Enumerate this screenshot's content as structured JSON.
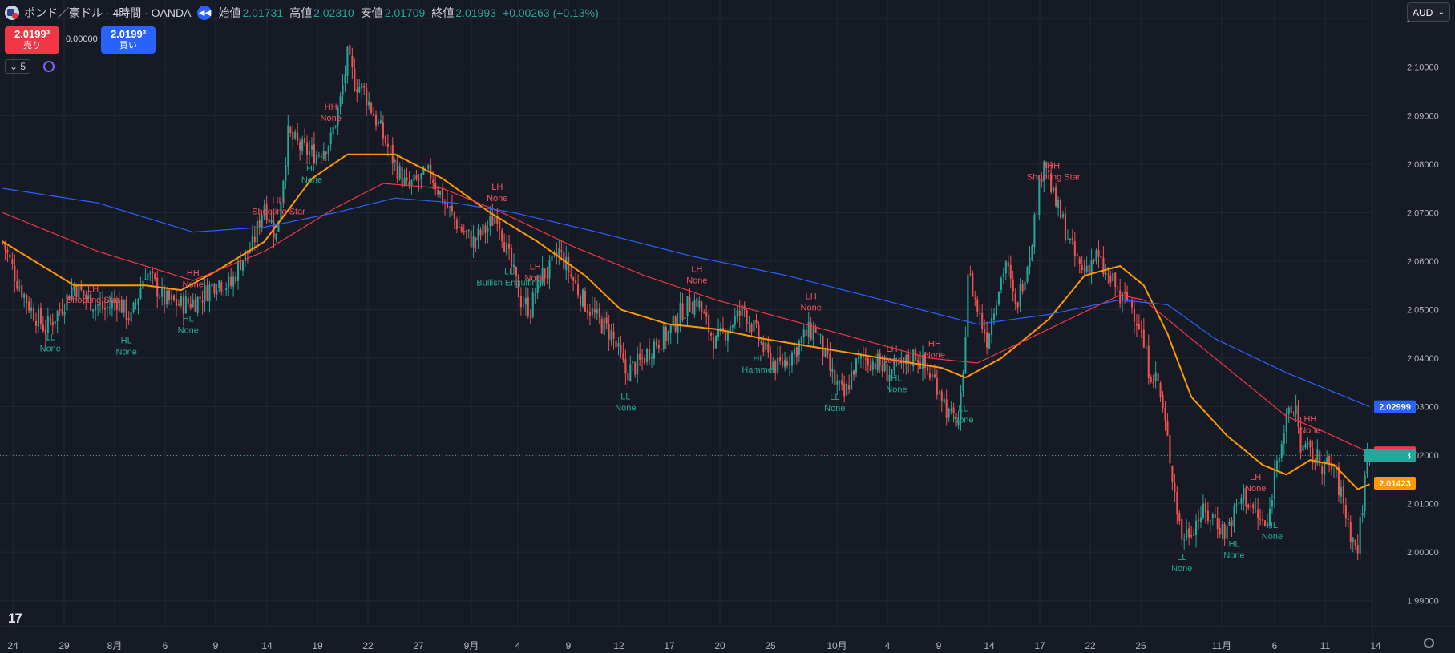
{
  "header": {
    "title": "ポンド／豪ドル · 4時間 · OANDA",
    "open_label": "始値",
    "open": "2.01731",
    "high_label": "高値",
    "high": "2.02310",
    "low_label": "安値",
    "low": "2.01709",
    "close_label": "終値",
    "close": "2.01993",
    "change": "+0.00263 (+0.13%)"
  },
  "trade": {
    "sell_price": "2.0199³",
    "sell_label": "売り",
    "spread": "0.00000",
    "buy_price": "2.0199³",
    "buy_label": "買い"
  },
  "indicator_count": "5",
  "currency": "AUD",
  "colors": {
    "up": "#26a69a",
    "down": "#ef5350",
    "ma_fast": "#ff9800",
    "ma_mid": "#f23645",
    "ma_slow": "#2962ff",
    "grid": "#232632",
    "hh_text": "#f7525f",
    "ll_text": "#22ab94"
  },
  "chart_data": {
    "type": "candlestick",
    "symbol": "GBPAUD",
    "ylim": [
      1.985,
      2.113
    ],
    "y_ticks": [
      "2.11000",
      "2.10000",
      "2.09000",
      "2.08000",
      "2.07000",
      "2.06000",
      "2.05000",
      "2.04000",
      "2.03000",
      "2.02000",
      "2.01000",
      "2.00000",
      "1.99000"
    ],
    "x_ticks": [
      "24",
      "29",
      "8月",
      "6",
      "9",
      "14",
      "19",
      "22",
      "27",
      "9月",
      "4",
      "9",
      "12",
      "17",
      "20",
      "25",
      "10月",
      "4",
      "9",
      "14",
      "17",
      "22",
      "25",
      "11月",
      "6",
      "11",
      "14"
    ],
    "price_anchors": [
      [
        0,
        2.064
      ],
      [
        6,
        2.056
      ],
      [
        12,
        2.05
      ],
      [
        18,
        2.046
      ],
      [
        24,
        2.05
      ],
      [
        30,
        2.055
      ],
      [
        36,
        2.052
      ],
      [
        43,
        2.05
      ],
      [
        48,
        2.052
      ],
      [
        54,
        2.048
      ],
      [
        60,
        2.058
      ],
      [
        68,
        2.052
      ],
      [
        75,
        2.051
      ],
      [
        82,
        2.052
      ],
      [
        90,
        2.056
      ],
      [
        96,
        2.055
      ],
      [
        100,
        2.06
      ],
      [
        105,
        2.063
      ],
      [
        110,
        2.072
      ],
      [
        115,
        2.065
      ],
      [
        120,
        2.086
      ],
      [
        126,
        2.083
      ],
      [
        132,
        2.082
      ],
      [
        138,
        2.085
      ],
      [
        142,
        2.093
      ],
      [
        145,
        2.102
      ],
      [
        148,
        2.097
      ],
      [
        152,
        2.095
      ],
      [
        158,
        2.088
      ],
      [
        165,
        2.08
      ],
      [
        170,
        2.075
      ],
      [
        176,
        2.077
      ],
      [
        180,
        2.078
      ],
      [
        186,
        2.072
      ],
      [
        192,
        2.067
      ],
      [
        198,
        2.064
      ],
      [
        204,
        2.067
      ],
      [
        208,
        2.07
      ],
      [
        212,
        2.062
      ],
      [
        218,
        2.052
      ],
      [
        222,
        2.05
      ],
      [
        226,
        2.057
      ],
      [
        230,
        2.058
      ],
      [
        234,
        2.062
      ],
      [
        238,
        2.058
      ],
      [
        244,
        2.052
      ],
      [
        250,
        2.048
      ],
      [
        256,
        2.045
      ],
      [
        262,
        2.037
      ],
      [
        268,
        2.039
      ],
      [
        274,
        2.043
      ],
      [
        280,
        2.045
      ],
      [
        286,
        2.05
      ],
      [
        292,
        2.052
      ],
      [
        296,
        2.047
      ],
      [
        300,
        2.043
      ],
      [
        306,
        2.047
      ],
      [
        312,
        2.05
      ],
      [
        318,
        2.044
      ],
      [
        322,
        2.04
      ],
      [
        326,
        2.038
      ],
      [
        332,
        2.041
      ],
      [
        338,
        2.045
      ],
      [
        342,
        2.046
      ],
      [
        346,
        2.04
      ],
      [
        350,
        2.035
      ],
      [
        354,
        2.032
      ],
      [
        358,
        2.038
      ],
      [
        362,
        2.04
      ],
      [
        368,
        2.039
      ],
      [
        372,
        2.037
      ],
      [
        378,
        2.038
      ],
      [
        384,
        2.041
      ],
      [
        388,
        2.038
      ],
      [
        394,
        2.034
      ],
      [
        398,
        2.028
      ],
      [
        402,
        2.027
      ],
      [
        404,
        2.035
      ],
      [
        406,
        2.058
      ],
      [
        410,
        2.05
      ],
      [
        414,
        2.044
      ],
      [
        418,
        2.053
      ],
      [
        422,
        2.06
      ],
      [
        426,
        2.05
      ],
      [
        432,
        2.062
      ],
      [
        436,
        2.075
      ],
      [
        438,
        2.082
      ],
      [
        442,
        2.073
      ],
      [
        446,
        2.068
      ],
      [
        450,
        2.062
      ],
      [
        454,
        2.058
      ],
      [
        460,
        2.061
      ],
      [
        464,
        2.057
      ],
      [
        468,
        2.055
      ],
      [
        470,
        2.052
      ],
      [
        474,
        2.052
      ],
      [
        478,
        2.047
      ],
      [
        482,
        2.038
      ],
      [
        486,
        2.035
      ],
      [
        490,
        2.023
      ],
      [
        494,
        2.009
      ],
      [
        496,
        2.003
      ],
      [
        500,
        2.005
      ],
      [
        504,
        2.008
      ],
      [
        510,
        2.007
      ],
      [
        514,
        2.004
      ],
      [
        518,
        2.008
      ],
      [
        522,
        2.012
      ],
      [
        528,
        2.007
      ],
      [
        532,
        2.005
      ],
      [
        536,
        2.02
      ],
      [
        540,
        2.027
      ],
      [
        544,
        2.03
      ],
      [
        546,
        2.022
      ],
      [
        550,
        2.02
      ],
      [
        556,
        2.018
      ],
      [
        560,
        2.017
      ],
      [
        564,
        2.01
      ],
      [
        568,
        2.002
      ],
      [
        570,
        2.001
      ],
      [
        572,
        2.01
      ],
      [
        574,
        2.02
      ],
      [
        575,
        2.0199
      ]
    ],
    "series": [
      {
        "name": "",
        "color": "#ff9800",
        "last": "2.01423",
        "anchors": [
          [
            0,
            2.064
          ],
          [
            30,
            2.055
          ],
          [
            60,
            2.055
          ],
          [
            75,
            2.054
          ],
          [
            90,
            2.058
          ],
          [
            110,
            2.064
          ],
          [
            130,
            2.077
          ],
          [
            145,
            2.082
          ],
          [
            165,
            2.082
          ],
          [
            185,
            2.077
          ],
          [
            205,
            2.07
          ],
          [
            225,
            2.064
          ],
          [
            245,
            2.057
          ],
          [
            260,
            2.05
          ],
          [
            280,
            2.047
          ],
          [
            300,
            2.046
          ],
          [
            320,
            2.044
          ],
          [
            345,
            2.042
          ],
          [
            370,
            2.04
          ],
          [
            395,
            2.038
          ],
          [
            405,
            2.036
          ],
          [
            420,
            2.04
          ],
          [
            440,
            2.048
          ],
          [
            455,
            2.057
          ],
          [
            470,
            2.059
          ],
          [
            480,
            2.055
          ],
          [
            490,
            2.045
          ],
          [
            500,
            2.032
          ],
          [
            515,
            2.024
          ],
          [
            530,
            2.018
          ],
          [
            540,
            2.016
          ],
          [
            550,
            2.019
          ],
          [
            560,
            2.018
          ],
          [
            570,
            2.013
          ],
          [
            575,
            2.014
          ]
        ]
      },
      {
        "name": "",
        "color": "#f23645",
        "last": "2.02048",
        "anchors": [
          [
            0,
            2.07
          ],
          [
            40,
            2.062
          ],
          [
            80,
            2.056
          ],
          [
            110,
            2.062
          ],
          [
            140,
            2.071
          ],
          [
            160,
            2.076
          ],
          [
            185,
            2.075
          ],
          [
            210,
            2.07
          ],
          [
            240,
            2.063
          ],
          [
            270,
            2.057
          ],
          [
            300,
            2.052
          ],
          [
            330,
            2.048
          ],
          [
            360,
            2.044
          ],
          [
            390,
            2.04
          ],
          [
            410,
            2.039
          ],
          [
            440,
            2.046
          ],
          [
            470,
            2.053
          ],
          [
            480,
            2.052
          ],
          [
            500,
            2.044
          ],
          [
            520,
            2.036
          ],
          [
            540,
            2.028
          ],
          [
            555,
            2.025
          ],
          [
            575,
            2.0205
          ]
        ]
      },
      {
        "name": "",
        "color": "#2962ff",
        "last": "2.02999",
        "anchors": [
          [
            0,
            2.075
          ],
          [
            40,
            2.072
          ],
          [
            80,
            2.066
          ],
          [
            110,
            2.067
          ],
          [
            140,
            2.07
          ],
          [
            165,
            2.073
          ],
          [
            190,
            2.072
          ],
          [
            215,
            2.07
          ],
          [
            250,
            2.066
          ],
          [
            290,
            2.061
          ],
          [
            330,
            2.057
          ],
          [
            370,
            2.052
          ],
          [
            410,
            2.047
          ],
          [
            440,
            2.049
          ],
          [
            470,
            2.052
          ],
          [
            490,
            2.051
          ],
          [
            510,
            2.044
          ],
          [
            540,
            2.037
          ],
          [
            560,
            2.033
          ],
          [
            575,
            2.03
          ]
        ]
      }
    ],
    "labels": [
      {
        "i": 138,
        "kind": "hi",
        "l1": "HH",
        "l2": "None"
      },
      {
        "i": 116,
        "kind": "hi",
        "l1": "HH",
        "l2": "Shooting Star"
      },
      {
        "i": 38,
        "kind": "hi",
        "l1": "LH",
        "l2": "Shooting Star"
      },
      {
        "i": 80,
        "kind": "hi",
        "l1": "HH",
        "l2": "None"
      },
      {
        "i": 208,
        "kind": "hi",
        "l1": "LH",
        "l2": "None"
      },
      {
        "i": 224,
        "kind": "hi",
        "l1": "LH",
        "l2": "None"
      },
      {
        "i": 292,
        "kind": "hi",
        "l1": "LH",
        "l2": "None"
      },
      {
        "i": 340,
        "kind": "hi",
        "l1": "LH",
        "l2": "None"
      },
      {
        "i": 374,
        "kind": "hi",
        "l1": "LH",
        "l2": "None"
      },
      {
        "i": 392,
        "kind": "hi",
        "l1": "HH",
        "l2": "None"
      },
      {
        "i": 442,
        "kind": "hi",
        "l1": "HH",
        "l2": "Shooting Star"
      },
      {
        "i": 527,
        "kind": "hi",
        "l1": "LH",
        "l2": "None"
      },
      {
        "i": 550,
        "kind": "hi",
        "l1": "HH",
        "l2": "None"
      },
      {
        "i": 20,
        "kind": "lo",
        "l1": "LL",
        "l2": "None"
      },
      {
        "i": 52,
        "kind": "lo",
        "l1": "HL",
        "l2": "None"
      },
      {
        "i": 78,
        "kind": "lo",
        "l1": "HL",
        "l2": "None"
      },
      {
        "i": 130,
        "kind": "lo",
        "l1": "HL",
        "l2": "None"
      },
      {
        "i": 213,
        "kind": "lo",
        "l1": "LL",
        "l2": "Bullish Engulfing"
      },
      {
        "i": 262,
        "kind": "lo",
        "l1": "LL",
        "l2": "None"
      },
      {
        "i": 318,
        "kind": "lo",
        "l1": "HL",
        "l2": "Hammer"
      },
      {
        "i": 350,
        "kind": "lo",
        "l1": "LL",
        "l2": "None"
      },
      {
        "i": 376,
        "kind": "lo",
        "l1": "HL",
        "l2": "None"
      },
      {
        "i": 404,
        "kind": "lo",
        "l1": "LL",
        "l2": "None"
      },
      {
        "i": 496,
        "kind": "lo",
        "l1": "LL",
        "l2": "None"
      },
      {
        "i": 518,
        "kind": "lo",
        "l1": "HL",
        "l2": "None"
      },
      {
        "i": 534,
        "kind": "lo",
        "l1": "HL",
        "l2": "None"
      }
    ],
    "last_price": "2.01993"
  }
}
